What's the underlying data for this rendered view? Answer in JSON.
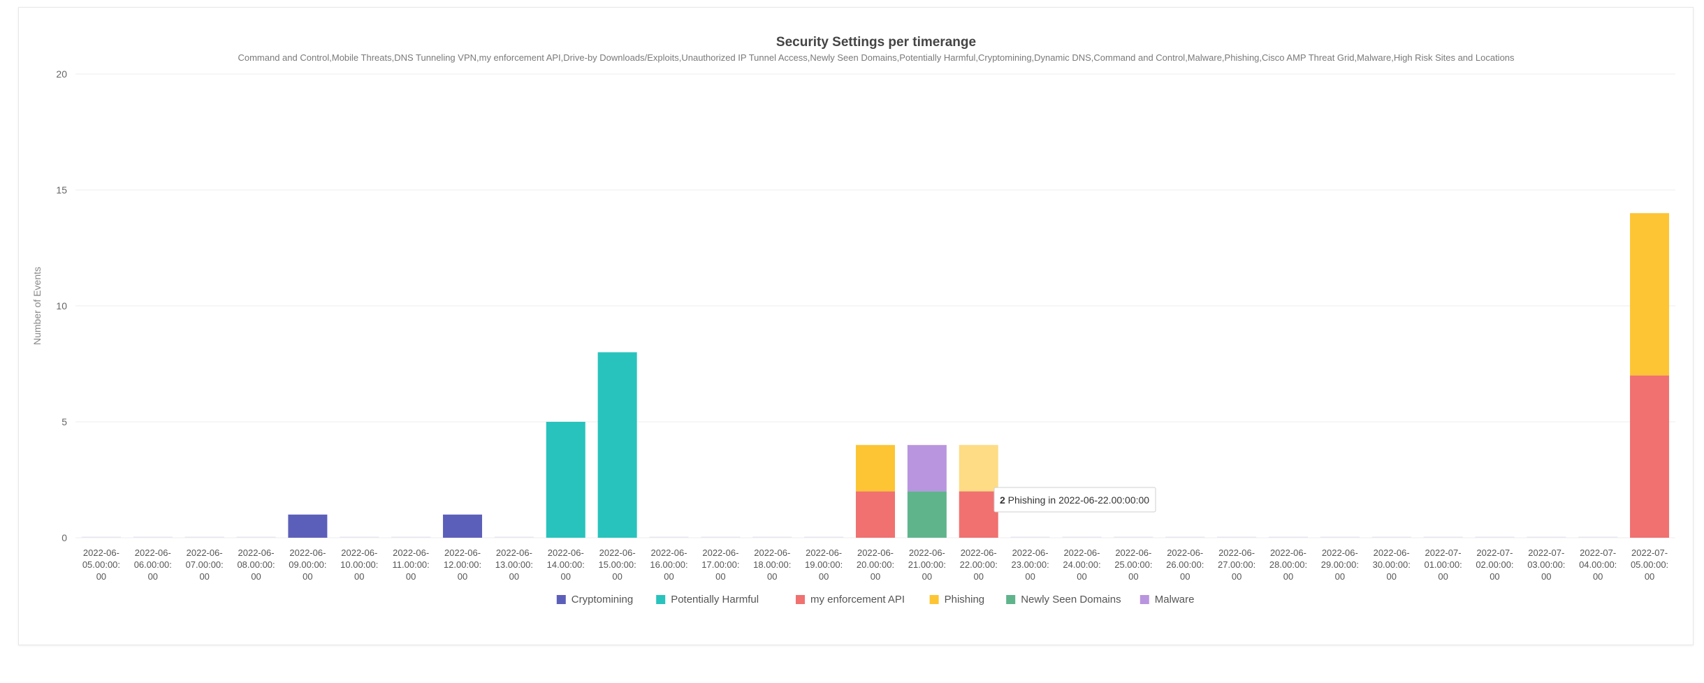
{
  "chart_data": {
    "type": "bar",
    "stacked": true,
    "title": "Security Settings per timerange",
    "subtitle": "Command and Control,Mobile Threats,DNS Tunneling VPN,my enforcement API,Drive-by Downloads/Exploits,Unauthorized IP Tunnel Access,Newly Seen Domains,Potentially Harmful,Cryptomining,Dynamic DNS,Command and Control,Malware,Phishing,Cisco AMP Threat Grid,Malware,High Risk Sites and Locations",
    "ylabel": "Number of Events",
    "xlabel": "",
    "ylim": [
      0,
      20
    ],
    "yticks": [
      0,
      5,
      10,
      15,
      20
    ],
    "grid": true,
    "legend_position": "bottom",
    "categories": [
      "2022-06-05.00:00:00",
      "2022-06-06.00:00:00",
      "2022-06-07.00:00:00",
      "2022-06-08.00:00:00",
      "2022-06-09.00:00:00",
      "2022-06-10.00:00:00",
      "2022-06-11.00:00:00",
      "2022-06-12.00:00:00",
      "2022-06-13.00:00:00",
      "2022-06-14.00:00:00",
      "2022-06-15.00:00:00",
      "2022-06-16.00:00:00",
      "2022-06-17.00:00:00",
      "2022-06-18.00:00:00",
      "2022-06-19.00:00:00",
      "2022-06-20.00:00:00",
      "2022-06-21.00:00:00",
      "2022-06-22.00:00:00",
      "2022-06-23.00:00:00",
      "2022-06-24.00:00:00",
      "2022-06-25.00:00:00",
      "2022-06-26.00:00:00",
      "2022-06-27.00:00:00",
      "2022-06-28.00:00:00",
      "2022-06-29.00:00:00",
      "2022-06-30.00:00:00",
      "2022-07-01.00:00:00",
      "2022-07-02.00:00:00",
      "2022-07-03.00:00:00",
      "2022-07-04.00:00:00",
      "2022-07-05.00:00:00"
    ],
    "tick_labels": [
      [
        "2022-06-",
        "05.00:00:",
        "00"
      ],
      [
        "2022-06-",
        "06.00:00:",
        "00"
      ],
      [
        "2022-06-",
        "07.00:00:",
        "00"
      ],
      [
        "2022-06-",
        "08.00:00:",
        "00"
      ],
      [
        "2022-06-",
        "09.00:00:",
        "00"
      ],
      [
        "2022-06-",
        "10.00:00:",
        "00"
      ],
      [
        "2022-06-",
        "11.00:00:",
        "00"
      ],
      [
        "2022-06-",
        "12.00:00:",
        "00"
      ],
      [
        "2022-06-",
        "13.00:00:",
        "00"
      ],
      [
        "2022-06-",
        "14.00:00:",
        "00"
      ],
      [
        "2022-06-",
        "15.00:00:",
        "00"
      ],
      [
        "2022-06-",
        "16.00:00:",
        "00"
      ],
      [
        "2022-06-",
        "17.00:00:",
        "00"
      ],
      [
        "2022-06-",
        "18.00:00:",
        "00"
      ],
      [
        "2022-06-",
        "19.00:00:",
        "00"
      ],
      [
        "2022-06-",
        "20.00:00:",
        "00"
      ],
      [
        "2022-06-",
        "21.00:00:",
        "00"
      ],
      [
        "2022-06-",
        "22.00:00:",
        "00"
      ],
      [
        "2022-06-",
        "23.00:00:",
        "00"
      ],
      [
        "2022-06-",
        "24.00:00:",
        "00"
      ],
      [
        "2022-06-",
        "25.00:00:",
        "00"
      ],
      [
        "2022-06-",
        "26.00:00:",
        "00"
      ],
      [
        "2022-06-",
        "27.00:00:",
        "00"
      ],
      [
        "2022-06-",
        "28.00:00:",
        "00"
      ],
      [
        "2022-06-",
        "29.00:00:",
        "00"
      ],
      [
        "2022-06-",
        "30.00:00:",
        "00"
      ],
      [
        "2022-07-",
        "01.00:00:",
        "00"
      ],
      [
        "2022-07-",
        "02.00:00:",
        "00"
      ],
      [
        "2022-07-",
        "03.00:00:",
        "00"
      ],
      [
        "2022-07-",
        "04.00:00:",
        "00"
      ],
      [
        "2022-07-",
        "05.00:00:",
        "00"
      ]
    ],
    "series": [
      {
        "name": "Cryptomining",
        "color": "#5c5fb9",
        "values": [
          0,
          0,
          0,
          0,
          1,
          0,
          0,
          1,
          0,
          0,
          0,
          0,
          0,
          0,
          0,
          0,
          0,
          0,
          0,
          0,
          0,
          0,
          0,
          0,
          0,
          0,
          0,
          0,
          0,
          0,
          0
        ]
      },
      {
        "name": "Potentially Harmful",
        "color": "#28c3bd",
        "values": [
          0,
          0,
          0,
          0,
          0,
          0,
          0,
          0,
          0,
          5,
          8,
          0,
          0,
          0,
          0,
          0,
          0,
          0,
          0,
          0,
          0,
          0,
          0,
          0,
          0,
          0,
          0,
          0,
          0,
          0,
          0
        ]
      },
      {
        "name": "my enforcement API",
        "color": "#f07170",
        "values": [
          0,
          0,
          0,
          0,
          0,
          0,
          0,
          0,
          0,
          0,
          0,
          0,
          0,
          0,
          0,
          2,
          0,
          2,
          0,
          0,
          0,
          0,
          0,
          0,
          0,
          0,
          0,
          0,
          0,
          0,
          7
        ]
      },
      {
        "name": "Phishing",
        "color": "#fdc533",
        "values": [
          0,
          0,
          0,
          0,
          0,
          0,
          0,
          0,
          0,
          0,
          0,
          0,
          0,
          0,
          0,
          2,
          0,
          2,
          0,
          0,
          0,
          0,
          0,
          0,
          0,
          0,
          0,
          0,
          0,
          0,
          7
        ]
      },
      {
        "name": "Newly Seen Domains",
        "color": "#5fb48c",
        "values": [
          0,
          0,
          0,
          0,
          0,
          0,
          0,
          0,
          0,
          0,
          0,
          0,
          0,
          0,
          0,
          0,
          2,
          0,
          0,
          0,
          0,
          0,
          0,
          0,
          0,
          0,
          0,
          0,
          0,
          0,
          0
        ]
      },
      {
        "name": "Malware",
        "color": "#b995df",
        "values": [
          0,
          0,
          0,
          0,
          0,
          0,
          0,
          0,
          0,
          0,
          0,
          0,
          0,
          0,
          0,
          0,
          2,
          0,
          0,
          0,
          0,
          0,
          0,
          0,
          0,
          0,
          0,
          0,
          0,
          0,
          0
        ]
      }
    ],
    "highlight": {
      "category_index": 17,
      "series": "Phishing"
    },
    "tooltip": {
      "value": "2",
      "text": " Phishing in 2022-06-22.00:00:00"
    }
  }
}
